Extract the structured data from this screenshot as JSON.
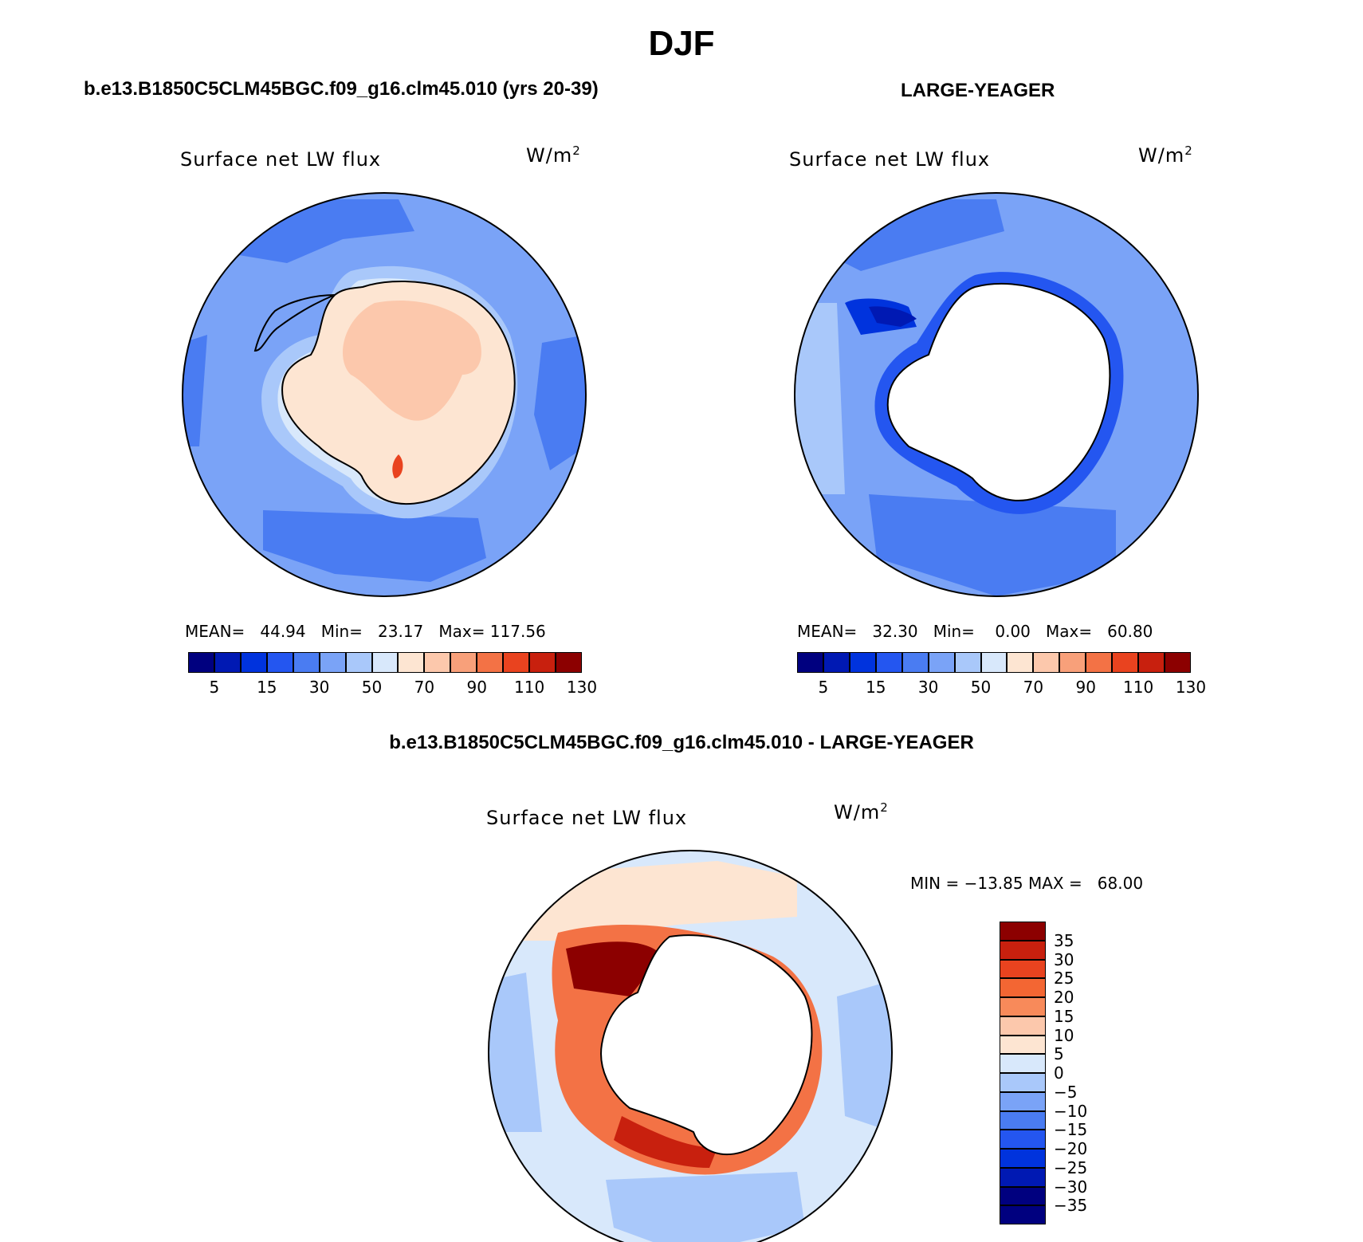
{
  "title": "DJF",
  "panels": [
    {
      "heading": "b.e13.B1850C5CLM45BGC.f09_g16.clm45.010 (yrs 20-39)",
      "variable": "Surface net LW flux",
      "units": "W/m",
      "units_sup": "2",
      "stats": "MEAN=   44.94   Min=   23.17   Max= 117.56"
    },
    {
      "heading": "LARGE-YEAGER",
      "variable": "Surface net LW flux",
      "units": "W/m",
      "units_sup": "2",
      "stats": "MEAN=   32.30   Min=    0.00   Max=   60.80"
    },
    {
      "heading": "b.e13.B1850C5CLM45BGC.f09_g16.clm45.010 - LARGE-YEAGER",
      "variable": "Surface net LW flux",
      "units": "W/m",
      "units_sup": "2",
      "stats": "MIN = −13.85 MAX =   68.00"
    }
  ],
  "colorbar_abs": {
    "colors": [
      "#00007f",
      "#0019b3",
      "#0033dd",
      "#2456f0",
      "#4a7cf2",
      "#7aa3f7",
      "#a9c8fa",
      "#d8e8fb",
      "#fde5d2",
      "#fcc8ac",
      "#f8a07a",
      "#f37245",
      "#e9431f",
      "#c8200e",
      "#8c0000"
    ],
    "tick_labels": [
      "5",
      "15",
      "30",
      "50",
      "70",
      "90",
      "110",
      "130"
    ]
  },
  "colorbar_diff": {
    "colors": [
      "#8c0000",
      "#c8200e",
      "#e9431f",
      "#f36633",
      "#f88a5a",
      "#fcc8ac",
      "#fde5d2",
      "#d8e8fb",
      "#a9c8fa",
      "#7aa3f7",
      "#4a7cf2",
      "#2456f0",
      "#0033dd",
      "#0019b3",
      "#00007f"
    ],
    "tick_labels": [
      "35",
      "30",
      "25",
      "20",
      "15",
      "10",
      "5",
      "0",
      "−5",
      "−10",
      "−15",
      "−20",
      "−25",
      "−30",
      "−35"
    ]
  }
}
